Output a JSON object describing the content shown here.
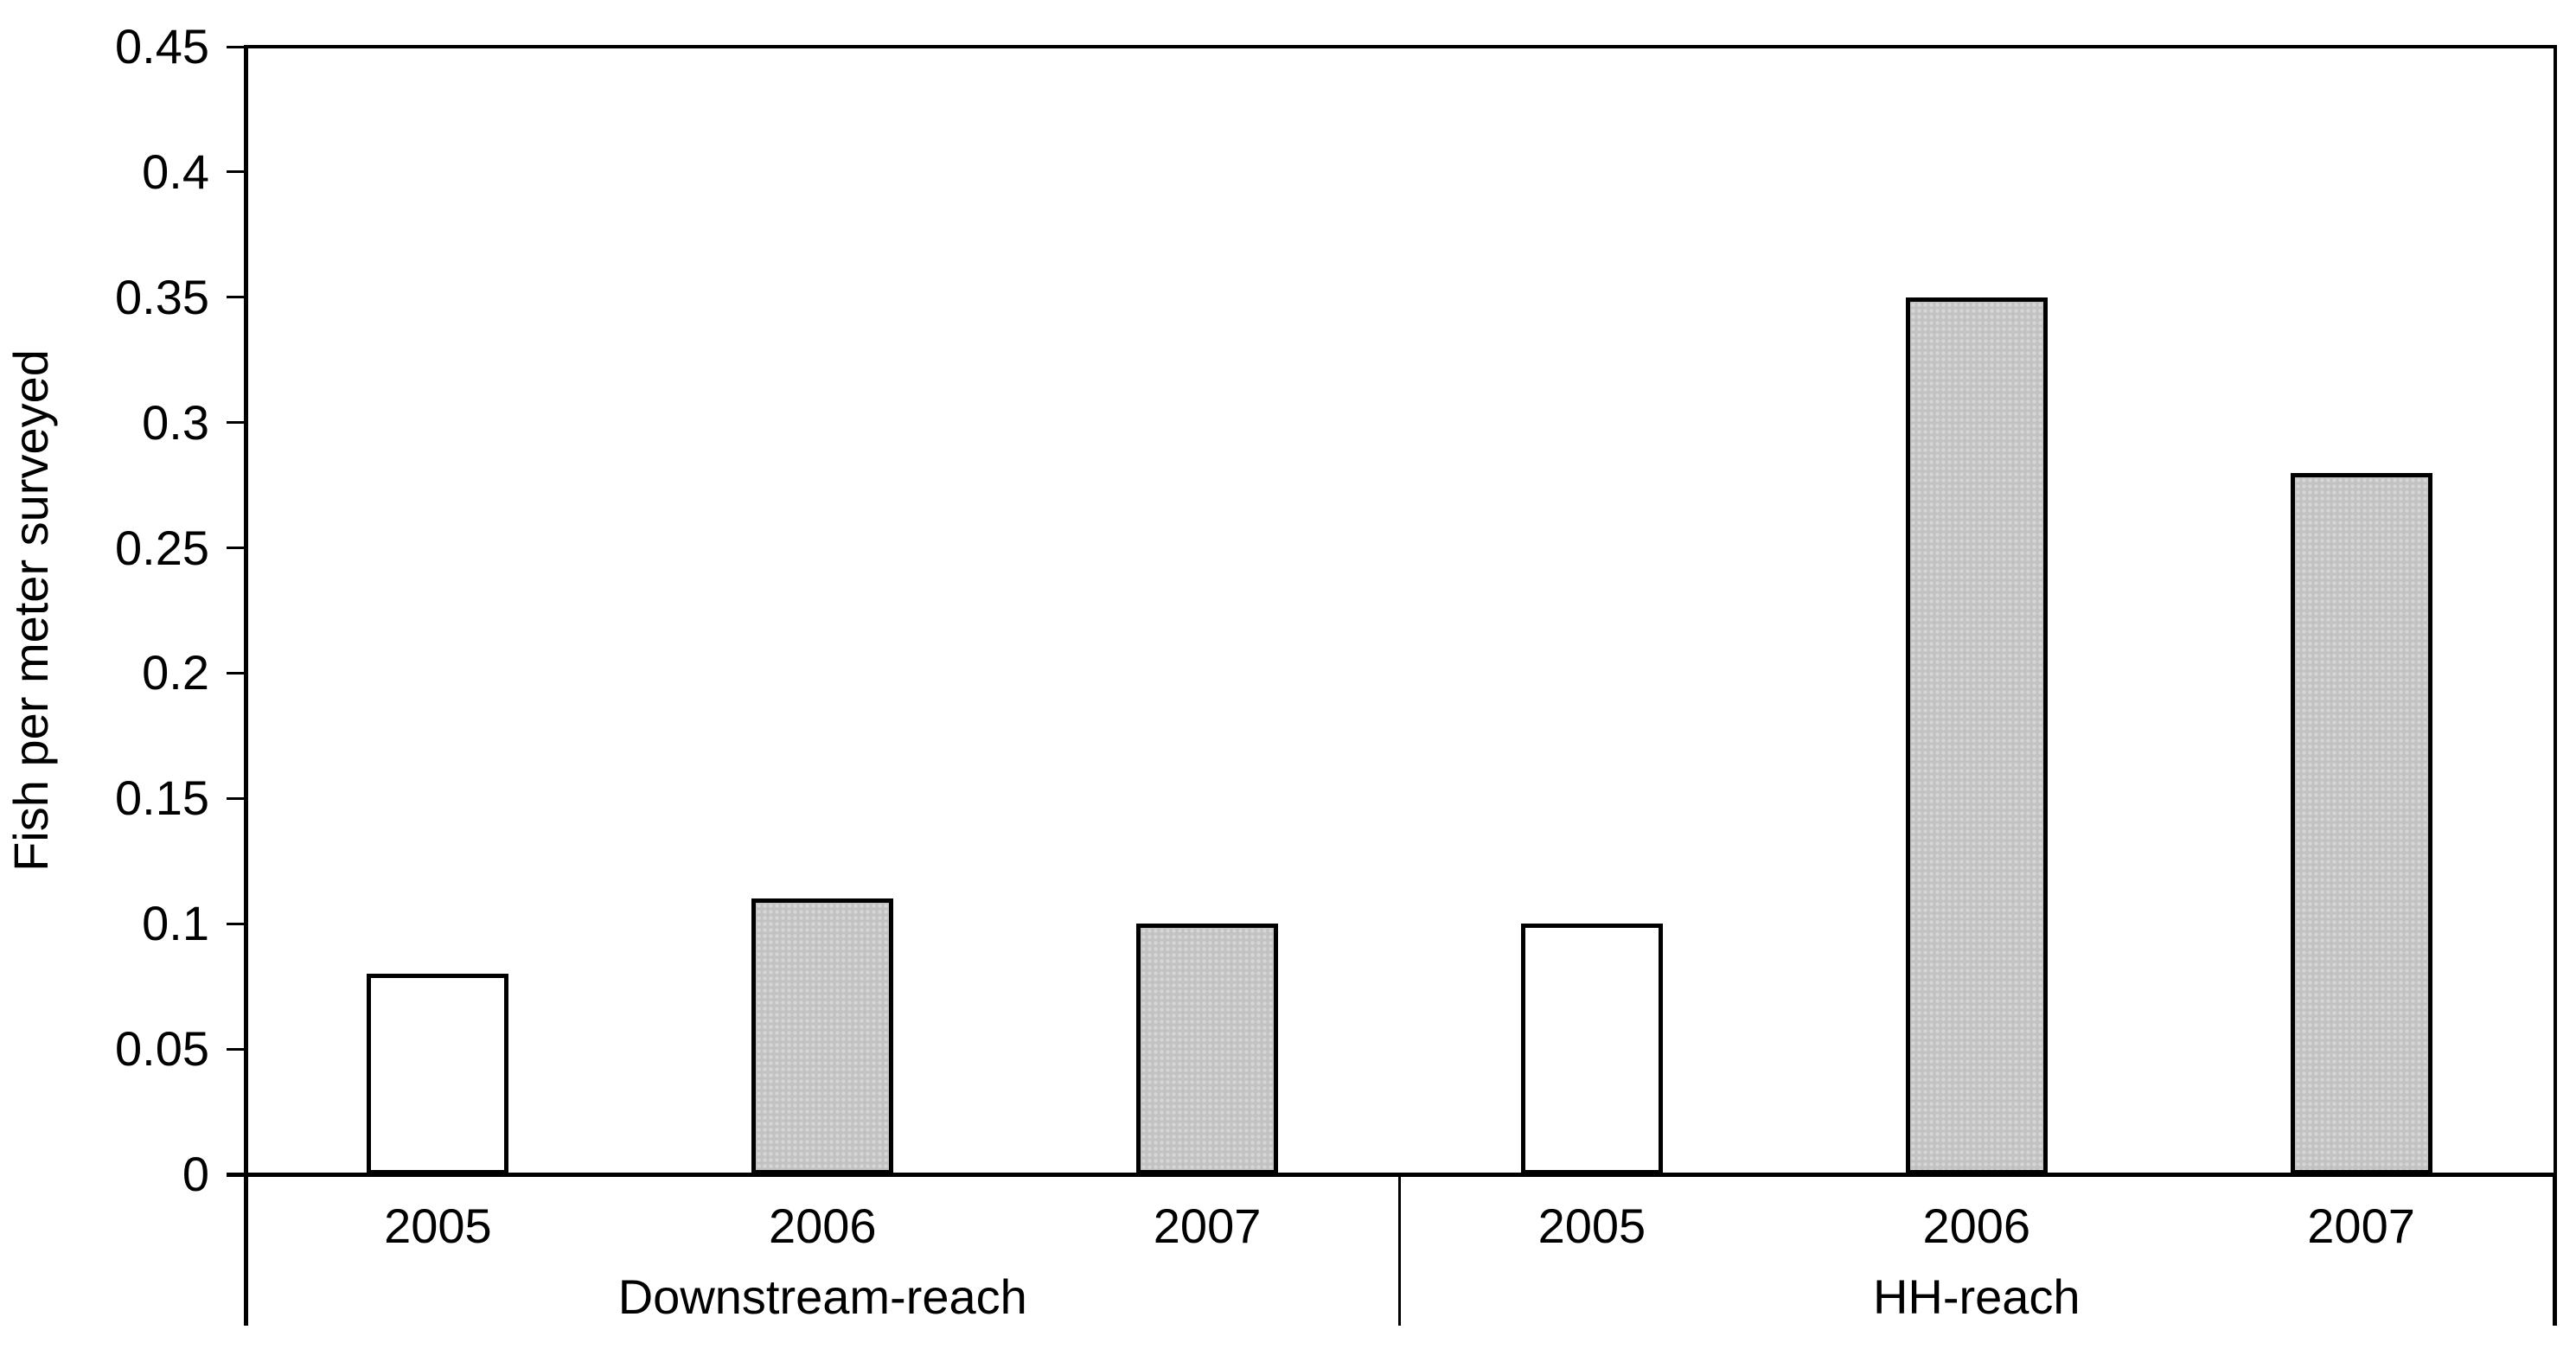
{
  "chart_data": {
    "type": "bar",
    "title": "",
    "xlabel": "",
    "ylabel": "Fish per meter surveyed",
    "ylim": [
      0,
      0.45
    ],
    "y_tick_step": 0.05,
    "y_ticks": [
      "0",
      "0.05",
      "0.1",
      "0.15",
      "0.2",
      "0.25",
      "0.3",
      "0.35",
      "0.4",
      "0.45"
    ],
    "grid": "off",
    "legend": "none",
    "groups": [
      {
        "label": "Downstream-reach",
        "categories": [
          "2005",
          "2006",
          "2007"
        ],
        "values": [
          0.08,
          0.11,
          0.1
        ],
        "fills": [
          "white",
          "gray",
          "gray"
        ]
      },
      {
        "label": "HH-reach",
        "categories": [
          "2005",
          "2006",
          "2007"
        ],
        "values": [
          0.1,
          0.35,
          0.28
        ],
        "fills": [
          "white",
          "gray",
          "gray"
        ]
      }
    ],
    "colors": {
      "bar_white_fill": "#ffffff",
      "bar_gray_fill": "#c2c2c2",
      "bar_gray_dot": "#d6d6d6",
      "bar_border": "#000000",
      "axis": "#000000",
      "background": "#ffffff"
    }
  }
}
